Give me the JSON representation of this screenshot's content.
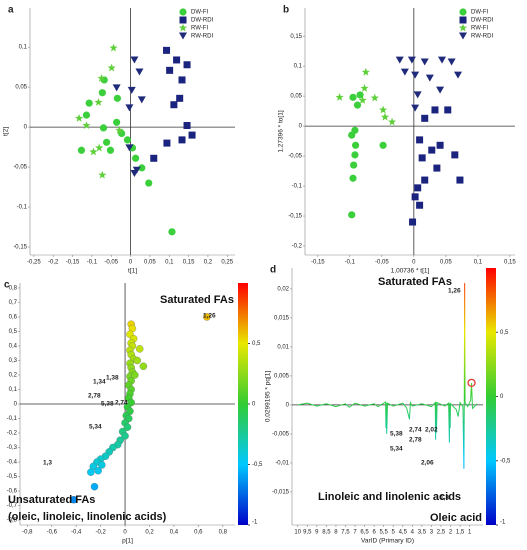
{
  "chart_data": [
    {
      "type": "scatter",
      "panel_label": "a",
      "x_label": "t[1]",
      "y_label": "t[2]",
      "xlim": [
        -0.26,
        0.27
      ],
      "ylim": [
        -0.16,
        0.149
      ],
      "xticks": [
        {
          "value": -0.25,
          "label": "-0,25"
        },
        {
          "value": -0.2,
          "label": "-0,2"
        },
        {
          "value": -0.15,
          "label": "-0,15"
        },
        {
          "value": -0.1,
          "label": "-0,1"
        },
        {
          "value": -0.05,
          "label": "-0,05"
        },
        0,
        {
          "value": 0.05,
          "label": "0,05"
        },
        {
          "value": 0.1,
          "label": "0,1"
        },
        {
          "value": 0.15,
          "label": "0,15"
        },
        {
          "value": 0.2,
          "label": "0,2"
        },
        {
          "value": 0.25,
          "label": "0,25"
        }
      ],
      "yticks": [
        {
          "value": -0.15,
          "label": "-0,15"
        },
        {
          "value": -0.1,
          "label": "-0,1"
        },
        {
          "value": -0.05,
          "label": "-0,05"
        },
        0,
        {
          "value": 0.05,
          "label": "0,05"
        },
        {
          "value": 0.1,
          "label": "0,1"
        }
      ],
      "series": [
        {
          "name": "DW-FI",
          "color": "#3ccf3c",
          "marker": "circle",
          "x": [
            -0.068,
            -0.073,
            -0.107,
            -0.034,
            -0.114,
            -0.036,
            -0.07,
            -0.023,
            -0.062,
            -0.008,
            -0.052,
            0.005,
            0.013,
            0.029,
            0.047,
            -0.127,
            0.107
          ],
          "values": [
            0.059,
            0.043,
            0.03,
            0.036,
            0.015,
            0.006,
            -0.001,
            -0.008,
            -0.019,
            -0.016,
            -0.029,
            -0.026,
            -0.039,
            -0.051,
            -0.07,
            -0.029,
            -0.131
          ]
        },
        {
          "name": "DW-RDI",
          "color": "#1a237e",
          "marker": "square",
          "x": [
            0.093,
            0.119,
            0.101,
            0.146,
            0.133,
            0.127,
            0.112,
            0.146,
            0.159,
            0.133,
            0.094,
            0.06
          ],
          "values": [
            0.096,
            0.084,
            0.071,
            0.078,
            0.059,
            0.036,
            0.028,
            0.002,
            -0.01,
            -0.016,
            -0.02,
            -0.039
          ]
        },
        {
          "name": "RW-FI",
          "color": "#5fcf3a",
          "marker": "star",
          "x": [
            -0.044,
            -0.049,
            -0.075,
            -0.083,
            -0.114,
            -0.133,
            -0.096,
            -0.073,
            -0.029,
            -0.081
          ],
          "values": [
            0.099,
            0.074,
            0.061,
            0.031,
            0.002,
            0.011,
            -0.031,
            -0.06,
            -0.004,
            -0.026
          ]
        },
        {
          "name": "RW-RDI",
          "color": "#1f2a7a",
          "marker": "triangle",
          "x": [
            -0.036,
            0.003,
            0.01,
            0.023,
            0.029,
            -0.003,
            -0.003,
            0.016,
            0.01
          ],
          "values": [
            0.049,
            0.046,
            0.084,
            0.069,
            0.034,
            0.024,
            -0.026,
            -0.054,
            -0.058
          ]
        }
      ]
    },
    {
      "type": "scatter",
      "panel_label": "b",
      "x_label": "1,00736 * t[1]",
      "y_label": "1,27396 * to[1]",
      "xlim": [
        -0.17,
        0.158
      ],
      "ylim": [
        -0.215,
        0.197
      ],
      "xticks": [
        {
          "value": -0.15,
          "label": "-0,15"
        },
        {
          "value": -0.1,
          "label": "-0,1"
        },
        {
          "value": -0.05,
          "label": "-0,05"
        },
        0,
        {
          "value": 0.05,
          "label": "0,05"
        },
        {
          "value": 0.1,
          "label": "0,1"
        },
        {
          "value": 0.15,
          "label": "0,15"
        }
      ],
      "yticks": [
        {
          "value": -0.2,
          "label": "-0,2"
        },
        {
          "value": -0.15,
          "label": "-0,15"
        },
        {
          "value": -0.1,
          "label": "-0,1"
        },
        {
          "value": -0.05,
          "label": "-0,05"
        },
        0,
        {
          "value": 0.05,
          "label": "0,05"
        },
        {
          "value": 0.1,
          "label": "0,1"
        },
        {
          "value": 0.15,
          "label": "0,15"
        }
      ],
      "series": [
        {
          "name": "DW-FI",
          "color": "#3ccf3c",
          "marker": "circle",
          "x": [
            -0.095,
            -0.084,
            -0.088,
            -0.092,
            -0.097,
            -0.091,
            -0.092,
            -0.094,
            -0.095,
            -0.097,
            -0.048
          ],
          "values": [
            0.048,
            0.052,
            0.035,
            -0.007,
            -0.015,
            -0.032,
            -0.048,
            -0.065,
            -0.087,
            -0.148,
            -0.032
          ]
        },
        {
          "name": "DW-RDI",
          "color": "#1a237e",
          "marker": "square",
          "x": [
            0.009,
            0.033,
            0.017,
            0.041,
            0.028,
            0.013,
            0.036,
            0.017,
            0.006,
            0.002,
            -0.002,
            0.072,
            0.064,
            0.053,
            0.009
          ],
          "values": [
            -0.023,
            0.027,
            0.013,
            -0.032,
            -0.04,
            -0.053,
            -0.07,
            -0.09,
            -0.103,
            -0.118,
            -0.16,
            -0.09,
            -0.048,
            0.027,
            -0.132
          ]
        },
        {
          "name": "RW-FI",
          "color": "#5fcf3a",
          "marker": "star",
          "x": [
            -0.077,
            -0.116,
            -0.075,
            -0.061,
            -0.048,
            -0.045,
            -0.08,
            -0.034
          ],
          "values": [
            0.063,
            0.048,
            0.09,
            0.047,
            0.027,
            0.015,
            0.043,
            0.007
          ]
        },
        {
          "name": "RW-RDI",
          "color": "#1f2a7a",
          "marker": "triangle",
          "x": [
            -0.022,
            -0.003,
            -0.014,
            0.002,
            0.017,
            0.025,
            0.044,
            0.059,
            0.069,
            0.041,
            0.006,
            0.002
          ],
          "values": [
            0.11,
            0.11,
            0.09,
            0.085,
            0.107,
            0.08,
            0.11,
            0.107,
            0.085,
            0.06,
            0.052,
            0.03
          ]
        }
      ]
    },
    {
      "type": "scatter",
      "panel_label": "c",
      "x_label": "p[1]",
      "y_label": "pq(corr)[1]",
      "xlim": [
        -0.86,
        0.9
      ],
      "ylim": [
        -0.834,
        0.834
      ],
      "xticks": [
        {
          "value": -0.8,
          "label": "-0,8"
        },
        {
          "value": -0.6,
          "label": "-0,6"
        },
        {
          "value": -0.4,
          "label": "-0,4"
        },
        {
          "value": -0.2,
          "label": "-0,2"
        },
        0,
        {
          "value": 0.2,
          "label": "0,2"
        },
        {
          "value": 0.4,
          "label": "0,4"
        },
        {
          "value": 0.6,
          "label": "0,6"
        },
        {
          "value": 0.8,
          "label": "0,8"
        }
      ],
      "yticks": [
        {
          "value": -0.8,
          "label": "-0,8"
        },
        {
          "value": -0.7,
          "label": "-0,7"
        },
        {
          "value": -0.6,
          "label": "-0,6"
        },
        {
          "value": -0.5,
          "label": "-0,5"
        },
        {
          "value": -0.4,
          "label": "-0,4"
        },
        {
          "value": -0.3,
          "label": "-0,3"
        },
        {
          "value": -0.2,
          "label": "-0,2"
        },
        {
          "value": -0.1,
          "label": "-0,1"
        },
        0,
        {
          "value": 0.1,
          "label": "0,1"
        },
        {
          "value": 0.2,
          "label": "0,2"
        },
        {
          "value": 0.3,
          "label": "0,3"
        },
        {
          "value": 0.4,
          "label": "0,4"
        },
        {
          "value": 0.5,
          "label": "0,5"
        },
        {
          "value": 0.6,
          "label": "0,6"
        },
        {
          "value": 0.7,
          "label": "0,7"
        },
        {
          "value": 0.8,
          "label": "0,8"
        }
      ],
      "x": [
        0.05,
        0.06,
        0.04,
        0.07,
        0.05,
        0.06,
        0.04,
        0.05,
        0.07,
        0.04,
        0.05,
        0.06,
        0.04,
        0.05,
        0.03,
        0.05,
        0.04,
        0.03,
        0.05,
        0.02,
        0.04,
        0.01,
        0.03,
        0,
        0.02,
        -0.02,
        0,
        -0.04,
        -0.06,
        -0.1,
        -0.13,
        -0.16,
        -0.2,
        -0.23,
        -0.19,
        -0.26,
        -0.22,
        -0.28,
        -0.25,
        -0.42,
        0.15,
        0.1,
        0.12,
        0.08,
        0.67
      ],
      "values": [
        0.55,
        0.52,
        0.48,
        0.45,
        0.42,
        0.4,
        0.37,
        0.34,
        0.31,
        0.28,
        0.25,
        0.22,
        0.19,
        0.16,
        0.13,
        0.1,
        0.07,
        0.04,
        0.01,
        -0.02,
        -0.05,
        -0.08,
        -0.1,
        -0.13,
        -0.16,
        -0.19,
        -0.22,
        -0.25,
        -0.28,
        -0.3,
        -0.33,
        -0.36,
        -0.38,
        -0.4,
        -0.42,
        -0.43,
        -0.46,
        -0.47,
        -0.57,
        -0.66,
        0.26,
        0.3,
        0.38,
        0.2,
        0.6
      ],
      "colorscale": [
        "#0000c8",
        "#00c8ff",
        "#33cc33",
        "#e8e800",
        "#ff0000"
      ],
      "colorlim": [
        -1,
        1
      ],
      "colorbar_ticks": [
        {
          "value": 0.5,
          "label": "0,5"
        },
        0,
        {
          "value": -0.5,
          "label": "-0,5"
        },
        -1
      ],
      "annotations": [
        "Saturated FAs",
        "1,26",
        "1,34",
        "1,38",
        "2,78",
        "5,38",
        "2,74",
        "5,34",
        "1,3",
        "Unsaturated FAs",
        "(oleic,  linoleic, linolenic acids)"
      ]
    },
    {
      "type": "line",
      "panel_label": "d",
      "x_label": "VarID (Primary ID)",
      "y_label": "0,0299195 * pq[1]",
      "xlim": [
        10.3,
        0.3
      ],
      "ylim": [
        -0.0207,
        0.0236
      ],
      "xticks": [
        10,
        {
          "value": 9.5,
          "label": "9,5"
        },
        9,
        {
          "value": 8.5,
          "label": "8,5"
        },
        8,
        {
          "value": 7.5,
          "label": "7,5"
        },
        7,
        {
          "value": 6.5,
          "label": "6,5"
        },
        6,
        {
          "value": 5.5,
          "label": "5,5"
        },
        5,
        {
          "value": 4.5,
          "label": "4,5"
        },
        4,
        {
          "value": 3.5,
          "label": "3,5"
        },
        3,
        {
          "value": 2.5,
          "label": "2,5"
        },
        2,
        {
          "value": 1.5,
          "label": "1,5"
        },
        1
      ],
      "yticks": [
        {
          "value": -0.015,
          "label": "-0,015"
        },
        {
          "value": -0.01,
          "label": "-0,01"
        },
        {
          "value": -0.005,
          "label": "-0,005"
        },
        0,
        {
          "value": 0.005,
          "label": "0,005"
        },
        {
          "value": 0.01,
          "label": "0,01"
        },
        {
          "value": 0.015,
          "label": "0,015"
        },
        {
          "value": 0.02,
          "label": "0,02"
        }
      ],
      "x": [
        10,
        9.5,
        9,
        8.5,
        8,
        7.5,
        7.3,
        7,
        6.5,
        6,
        5.8,
        5.4,
        5.38,
        5.36,
        5.34,
        5.3,
        5,
        4.5,
        4.3,
        4.15,
        4.1,
        4,
        3.5,
        3,
        2.8,
        2.78,
        2.76,
        2.74,
        2.7,
        2.3,
        2.1,
        2.06,
        2.04,
        2.02,
        2,
        1.7,
        1.6,
        1.5,
        1.35,
        1.3,
        1.28,
        1.26,
        1.24,
        1.1,
        0.95,
        0.9,
        0.85,
        0.6
      ],
      "values": [
        0,
        0.0003,
        -0.0002,
        0.0002,
        -0.0003,
        0.0002,
        -0.0004,
        0.0003,
        -0.0002,
        0.0002,
        -0.0003,
        0.0005,
        -0.004,
        0.0004,
        -0.005,
        0.0003,
        -0.0002,
        0.0003,
        -0.0005,
        -0.0025,
        0.0004,
        -0.0002,
        0.0002,
        -0.0003,
        0.0004,
        -0.006,
        0.0005,
        -0.0048,
        0.0004,
        -0.0002,
        0.0003,
        -0.0065,
        0.0003,
        -0.004,
        0.0002,
        -0.0008,
        -0.002,
        0.0004,
        -0.0003,
        -0.011,
        0.0005,
        0.021,
        0.0004,
        -0.0003,
        0.0008,
        0.0038,
        -0.0006,
        0.0002
      ],
      "highlight": {
        "x": 0.9,
        "y": 0.0038,
        "color": "#e53935"
      },
      "colorscale": [
        "#0000c8",
        "#00c8ff",
        "#33cc33",
        "#e8e800",
        "#ff0000"
      ],
      "colorlim": [
        -1,
        1
      ],
      "colorbar_ticks": [
        {
          "value": 0.5,
          "label": "0,5"
        },
        0,
        {
          "value": -0.5,
          "label": "-0,5"
        },
        -1
      ],
      "annotations": [
        "Saturated FAs",
        "1,26",
        "2,74",
        "2,02",
        "2,78",
        "5,38",
        "5,34",
        "2,06",
        "Linoleic and linolenic acids",
        "1,3",
        "Oleic acid"
      ]
    }
  ]
}
